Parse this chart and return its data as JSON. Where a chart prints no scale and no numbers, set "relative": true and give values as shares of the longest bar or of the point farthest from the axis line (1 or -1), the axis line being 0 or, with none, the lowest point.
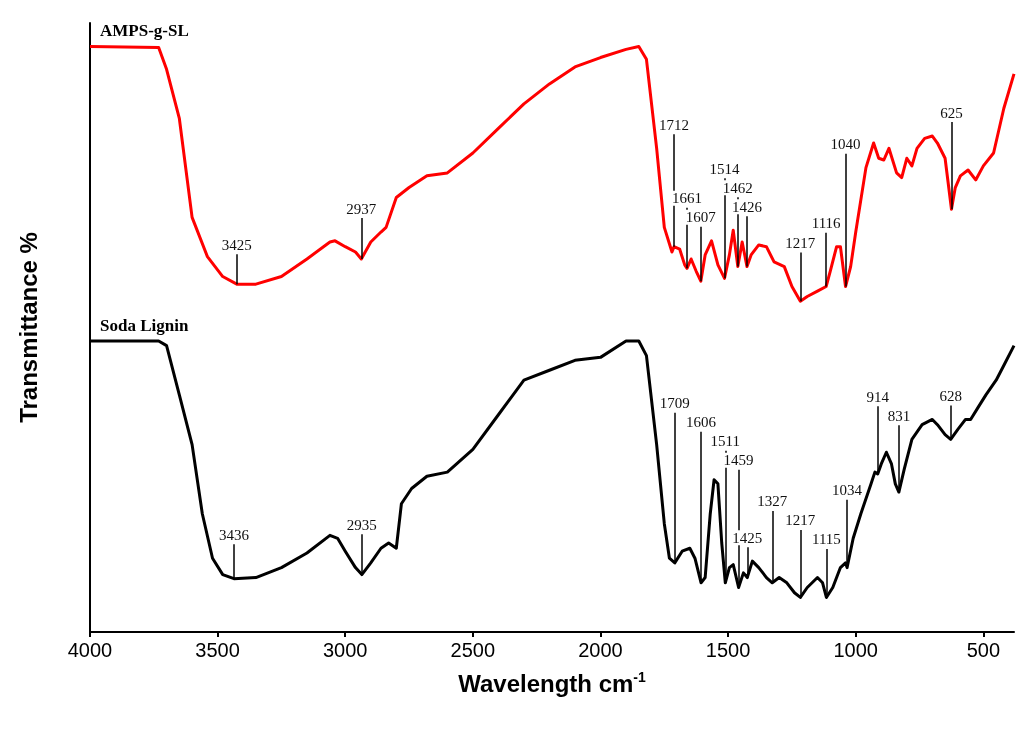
{
  "chart_data": {
    "type": "line",
    "relative": true,
    "xlabel": "Wavelength cm$^{-1}$",
    "ylabel": "Transmittance %",
    "xlim": [
      4000,
      380
    ],
    "xticks": [
      4000,
      3500,
      3000,
      2500,
      2000,
      1500,
      1000,
      500
    ],
    "grid": false,
    "legend": false,
    "marker": "none",
    "line_style": "solid",
    "series": [
      {
        "name": "AMPS-g-SL",
        "color": "#ff0000",
        "x": [
          4000,
          3731,
          3700,
          3650,
          3600,
          3540,
          3480,
          3425,
          3350,
          3250,
          3150,
          3060,
          3040,
          3000,
          2960,
          2937,
          2900,
          2860,
          2840,
          2800,
          2750,
          2680,
          2600,
          2500,
          2400,
          2300,
          2200,
          2100,
          2000,
          1900,
          1850,
          1820,
          1780,
          1750,
          1720,
          1712,
          1690,
          1670,
          1661,
          1645,
          1625,
          1607,
          1590,
          1565,
          1540,
          1514,
          1495,
          1480,
          1462,
          1445,
          1426,
          1410,
          1380,
          1350,
          1320,
          1280,
          1250,
          1217,
          1190,
          1150,
          1116,
          1100,
          1075,
          1060,
          1040,
          1020,
          1000,
          960,
          930,
          910,
          890,
          870,
          840,
          820,
          800,
          780,
          760,
          730,
          700,
          680,
          650,
          625,
          610,
          590,
          560,
          530,
          500,
          460,
          420,
          380
        ],
        "values": [
          1.0,
          0.998,
          0.961,
          0.877,
          0.708,
          0.641,
          0.607,
          0.594,
          0.594,
          0.607,
          0.637,
          0.666,
          0.668,
          0.658,
          0.649,
          0.637,
          0.666,
          0.683,
          0.691,
          0.742,
          0.759,
          0.779,
          0.784,
          0.818,
          0.86,
          0.902,
          0.936,
          0.965,
          0.981,
          0.995,
          1.0,
          0.978,
          0.826,
          0.691,
          0.649,
          0.658,
          0.654,
          0.627,
          0.621,
          0.637,
          0.616,
          0.599,
          0.644,
          0.668,
          0.627,
          0.604,
          0.644,
          0.686,
          0.624,
          0.666,
          0.624,
          0.644,
          0.661,
          0.658,
          0.632,
          0.624,
          0.59,
          0.565,
          0.573,
          0.582,
          0.59,
          0.616,
          0.658,
          0.658,
          0.59,
          0.624,
          0.683,
          0.793,
          0.835,
          0.809,
          0.806,
          0.826,
          0.784,
          0.776,
          0.809,
          0.796,
          0.826,
          0.843,
          0.847,
          0.835,
          0.809,
          0.722,
          0.759,
          0.779,
          0.789,
          0.772,
          0.796,
          0.818,
          0.894,
          0.953
        ]
      },
      {
        "name": "Soda Lignin",
        "color": "#000000",
        "x": [
          4000,
          3731,
          3700,
          3650,
          3600,
          3560,
          3520,
          3480,
          3436,
          3350,
          3250,
          3150,
          3060,
          3030,
          3000,
          2960,
          2935,
          2900,
          2860,
          2830,
          2800,
          2780,
          2740,
          2680,
          2600,
          2500,
          2400,
          2300,
          2200,
          2100,
          2000,
          1900,
          1850,
          1820,
          1780,
          1750,
          1730,
          1709,
          1680,
          1650,
          1630,
          1606,
          1590,
          1570,
          1555,
          1540,
          1525,
          1511,
          1495,
          1480,
          1459,
          1440,
          1425,
          1405,
          1380,
          1350,
          1327,
          1300,
          1270,
          1240,
          1217,
          1190,
          1150,
          1130,
          1115,
          1090,
          1060,
          1040,
          1034,
          1010,
          980,
          940,
          925,
          914,
          900,
          880,
          860,
          845,
          831,
          810,
          780,
          740,
          700,
          680,
          650,
          628,
          600,
          570,
          550,
          520,
          490,
          450,
          420,
          380
        ],
        "values": [
          0.497,
          0.497,
          0.489,
          0.405,
          0.32,
          0.202,
          0.126,
          0.098,
          0.091,
          0.093,
          0.11,
          0.135,
          0.165,
          0.16,
          0.138,
          0.11,
          0.098,
          0.118,
          0.143,
          0.152,
          0.143,
          0.219,
          0.245,
          0.266,
          0.273,
          0.312,
          0.371,
          0.43,
          0.447,
          0.464,
          0.469,
          0.497,
          0.497,
          0.472,
          0.32,
          0.185,
          0.126,
          0.118,
          0.138,
          0.143,
          0.126,
          0.084,
          0.093,
          0.202,
          0.26,
          0.253,
          0.152,
          0.084,
          0.11,
          0.115,
          0.076,
          0.101,
          0.093,
          0.121,
          0.11,
          0.093,
          0.084,
          0.093,
          0.084,
          0.067,
          0.059,
          0.076,
          0.093,
          0.084,
          0.059,
          0.076,
          0.11,
          0.118,
          0.11,
          0.16,
          0.202,
          0.253,
          0.273,
          0.27,
          0.287,
          0.307,
          0.287,
          0.253,
          0.239,
          0.278,
          0.329,
          0.354,
          0.363,
          0.354,
          0.337,
          0.329,
          0.346,
          0.363,
          0.363,
          0.384,
          0.405,
          0.43,
          0.455,
          0.489
        ]
      }
    ],
    "annotations": [
      {
        "text": "3425",
        "x": 3425,
        "y": 0.594
      },
      {
        "text": "2937",
        "x": 2937,
        "y": 0.637
      },
      {
        "text": "1712",
        "x": 1712,
        "y": 0.658
      },
      {
        "text": "1661",
        "x": 1661,
        "y": 0.621
      },
      {
        "text": "1607",
        "x": 1607,
        "y": 0.599
      },
      {
        "text": "1514",
        "x": 1514,
        "y": 0.604
      },
      {
        "text": "1462",
        "x": 1462,
        "y": 0.624
      },
      {
        "text": "1426",
        "x": 1426,
        "y": 0.624
      },
      {
        "text": "1217",
        "x": 1217,
        "y": 0.565
      },
      {
        "text": "1116",
        "x": 1116,
        "y": 0.59
      },
      {
        "text": "1040",
        "x": 1040,
        "y": 0.59
      },
      {
        "text": "625",
        "x": 625,
        "y": 0.722
      },
      {
        "text": "3436",
        "x": 3436,
        "y": 0.091
      },
      {
        "text": "2935",
        "x": 2935,
        "y": 0.098
      },
      {
        "text": "1709",
        "x": 1709,
        "y": 0.118
      },
      {
        "text": "1606",
        "x": 1606,
        "y": 0.084
      },
      {
        "text": "1511",
        "x": 1511,
        "y": 0.084
      },
      {
        "text": "1459",
        "x": 1459,
        "y": 0.076
      },
      {
        "text": "1425",
        "x": 1425,
        "y": 0.093
      },
      {
        "text": "1327",
        "x": 1327,
        "y": 0.084
      },
      {
        "text": "1217",
        "x": 1217,
        "y": 0.059
      },
      {
        "text": "1115",
        "x": 1115,
        "y": 0.059
      },
      {
        "text": "1034",
        "x": 1034,
        "y": 0.11
      },
      {
        "text": "914",
        "x": 914,
        "y": 0.27
      },
      {
        "text": "831",
        "x": 831,
        "y": 0.239
      },
      {
        "text": "628",
        "x": 628,
        "y": 0.329
      }
    ]
  }
}
